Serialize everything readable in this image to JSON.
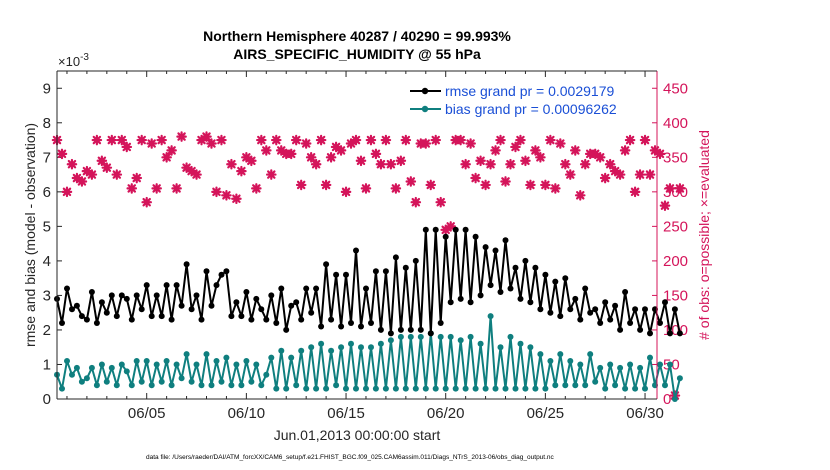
{
  "chart_data": {
    "type": "line",
    "title_line1": "Northern Hemisphere 40287 / 40290 = 99.993%",
    "title_line2": "AIRS_SPECIFIC_HUMIDITY @ 55 hPa",
    "xlabel": "Jun.01,2013 00:00:00 start",
    "ylabel_left": "rmse and bias (model - observation)",
    "ylabel_right": "# of obs: o=possible; ×=evaluated",
    "exponent_label": "×10",
    "exponent_power": "-3",
    "footer": "data file: /Users/raeder/DAI/ATM_forcXX/CAM6_setup/f.e21.FHIST_BGC.f09_025.CAM6assim.011/Diags_NTrS_2013-06/obs_diag_output.nc",
    "x_range_days": [
      0.5,
      30.6
    ],
    "ylim_left": [
      0,
      9.5
    ],
    "ylim_right": [
      0,
      475
    ],
    "yticks_left": [
      "0",
      "1",
      "2",
      "3",
      "4",
      "5",
      "6",
      "7",
      "8",
      "9"
    ],
    "yticks_right": [
      "0",
      "50",
      "100",
      "150",
      "200",
      "250",
      "300",
      "350",
      "400",
      "450"
    ],
    "xticks": [
      {
        "day": 5,
        "label": "06/05"
      },
      {
        "day": 10,
        "label": "06/10"
      },
      {
        "day": 15,
        "label": "06/15"
      },
      {
        "day": 20,
        "label": "06/20"
      },
      {
        "day": 25,
        "label": "06/25"
      },
      {
        "day": 30,
        "label": "06/30"
      }
    ],
    "colors": {
      "rmse": "#000000",
      "bias": "#0f7f7f",
      "obs": "#d4145a"
    },
    "series": [
      {
        "name": "rmse",
        "legend": "rmse grand pr = 0.0029179",
        "start_day": 0.5,
        "step_days": 0.25,
        "values": [
          2.9,
          2.2,
          3.2,
          2.6,
          2.7,
          2.4,
          2.3,
          3.1,
          2.2,
          2.8,
          2.5,
          3.0,
          2.4,
          3.0,
          2.9,
          2.3,
          3.0,
          2.6,
          3.3,
          2.4,
          3.0,
          2.4,
          3.3,
          2.3,
          3.3,
          2.7,
          3.9,
          2.6,
          3.0,
          2.3,
          3.7,
          2.7,
          3.3,
          3.6,
          3.7,
          2.4,
          2.8,
          2.4,
          3.1,
          2.3,
          2.9,
          2.6,
          2.3,
          3.0,
          2.2,
          3.2,
          2.0,
          2.7,
          2.8,
          2.3,
          3.2,
          2.5,
          3.2,
          2.1,
          3.9,
          2.3,
          3.6,
          2.1,
          3.6,
          2.2,
          4.3,
          2.1,
          3.2,
          2.2,
          3.7,
          2.0,
          3.7,
          1.9,
          4.1,
          2.0,
          3.8,
          2.0,
          4.0,
          2.0,
          4.9,
          1.9,
          4.9,
          2.2,
          4.7,
          2.8,
          4.9,
          2.9,
          4.9,
          2.8,
          4.7,
          3.0,
          4.4,
          3.3,
          4.3,
          3.1,
          4.6,
          3.2,
          3.8,
          2.9,
          4.0,
          2.8,
          3.8,
          2.6,
          3.6,
          2.5,
          3.4,
          2.4,
          3.5,
          2.6,
          2.9,
          2.3,
          3.2,
          2.5,
          2.6,
          2.2,
          2.8,
          2.3,
          2.7,
          2.0,
          3.1,
          2.2,
          2.6,
          2.0,
          2.6,
          1.9,
          2.6,
          2.2,
          2.8,
          1.9,
          2.6,
          1.9
        ]
      },
      {
        "name": "bias",
        "legend": "bias grand pr = 0.00096262",
        "start_day": 0.5,
        "step_days": 0.25,
        "values": [
          0.7,
          0.3,
          1.1,
          0.7,
          0.9,
          0.5,
          0.6,
          0.9,
          0.4,
          1.0,
          0.5,
          0.9,
          0.4,
          1.0,
          0.8,
          0.4,
          1.1,
          0.5,
          1.1,
          0.4,
          1.0,
          0.5,
          1.1,
          0.4,
          1.0,
          0.6,
          1.3,
          0.5,
          1.0,
          0.4,
          1.3,
          0.4,
          1.1,
          0.5,
          1.2,
          0.4,
          1.0,
          0.4,
          1.1,
          0.5,
          1.0,
          0.4,
          0.7,
          1.2,
          0.3,
          1.4,
          0.3,
          1.2,
          0.4,
          1.4,
          0.3,
          1.5,
          0.3,
          1.6,
          0.3,
          1.4,
          0.4,
          1.5,
          0.3,
          1.6,
          0.3,
          1.5,
          0.3,
          1.5,
          0.3,
          1.6,
          0.3,
          1.7,
          0.3,
          1.8,
          0.3,
          1.8,
          0.3,
          1.8,
          0.3,
          1.9,
          0.3,
          1.8,
          0.3,
          1.8,
          0.3,
          1.7,
          0.3,
          1.8,
          0.3,
          1.6,
          0.3,
          2.4,
          0.3,
          1.5,
          0.3,
          1.8,
          0.3,
          1.6,
          0.3,
          1.5,
          0.3,
          1.3,
          0.3,
          1.1,
          0.4,
          1.3,
          0.4,
          1.1,
          0.4,
          1.0,
          0.4,
          1.3,
          0.5,
          0.9,
          0.3,
          1.0,
          0.4,
          0.9,
          0.3,
          1.0,
          0.3,
          0.9,
          0.3,
          1.2,
          0.4,
          1.0,
          0.4,
          1.0,
          0.0,
          0.6
        ]
      },
      {
        "name": "observations_evaluated",
        "start_day": 0.5,
        "step_days": 0.25,
        "values": [
          375,
          355,
          300,
          340,
          320,
          315,
          330,
          325,
          375,
          345,
          335,
          375,
          325,
          375,
          365,
          305,
          320,
          375,
          285,
          370,
          305,
          375,
          350,
          360,
          305,
          380,
          335,
          330,
          325,
          375,
          380,
          370,
          300,
          375,
          295,
          340,
          290,
          330,
          350,
          345,
          305,
          375,
          360,
          325,
          375,
          360,
          355,
          355,
          375,
          310,
          370,
          350,
          340,
          375,
          310,
          350,
          365,
          360,
          300,
          370,
          375,
          345,
          305,
          375,
          355,
          340,
          375,
          340,
          305,
          345,
          375,
          315,
          285,
          370,
          370,
          310,
          375,
          285,
          245,
          250,
          375,
          375,
          340,
          370,
          320,
          345,
          310,
          340,
          360,
          375,
          315,
          340,
          365,
          375,
          345,
          310,
          360,
          350,
          310,
          375,
          305,
          370,
          340,
          325,
          360,
          295,
          340,
          355,
          355,
          350,
          320,
          340,
          330,
          325,
          360,
          375,
          300,
          325,
          375,
          325,
          360,
          355,
          280,
          305,
          5,
          305
        ]
      }
    ]
  }
}
